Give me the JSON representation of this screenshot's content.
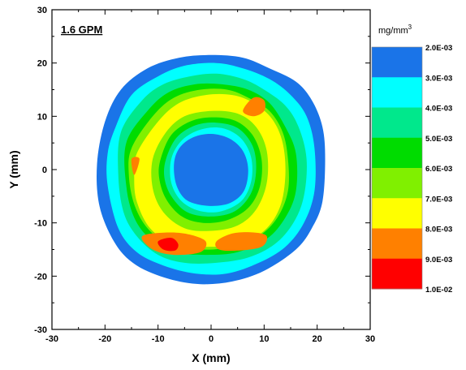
{
  "chart_data": {
    "type": "heatmap",
    "title": "",
    "annotation": "1.6 GPM",
    "xlabel": "X (mm)",
    "ylabel": "Y (mm)",
    "xlim": [
      -30,
      30
    ],
    "ylim": [
      -30,
      30
    ],
    "xticks": [
      -30,
      -20,
      -10,
      0,
      10,
      20,
      30
    ],
    "yticks": [
      -30,
      -20,
      -10,
      0,
      10,
      20,
      30
    ],
    "xtick_labels": [
      "-30",
      "-20",
      "-10",
      "0",
      "10",
      "20",
      "30"
    ],
    "ytick_labels": [
      "-30",
      "-20",
      "-10",
      "0",
      "10",
      "20",
      "30"
    ],
    "colorbar": {
      "unit": "mg/mm",
      "unit_sup": "3",
      "levels": [
        0.002,
        0.003,
        0.004,
        0.005,
        0.006,
        0.007,
        0.008,
        0.009,
        0.01
      ],
      "level_labels": [
        "2.0E-03",
        "3.0E-03",
        "4.0E-03",
        "5.0E-03",
        "6.0E-03",
        "7.0E-03",
        "8.0E-03",
        "9.0E-03",
        "1.0E-02"
      ],
      "colors": [
        "#1a74e8",
        "#00ffff",
        "#00e88c",
        "#00dc00",
        "#80f000",
        "#ffff00",
        "#ff8000",
        "#ff0000"
      ]
    },
    "contours": [
      {
        "level": 0.002,
        "color": "#1a74e8",
        "points": [
          [
            -20,
            9
          ],
          [
            -17,
            15
          ],
          [
            -12,
            19
          ],
          [
            -6,
            21
          ],
          [
            0,
            21.5
          ],
          [
            6,
            21
          ],
          [
            11,
            19
          ],
          [
            16,
            16.5
          ],
          [
            19,
            13
          ],
          [
            21,
            8
          ],
          [
            21.5,
            2
          ],
          [
            21,
            -6
          ],
          [
            19,
            -11
          ],
          [
            16,
            -15
          ],
          [
            10,
            -19
          ],
          [
            4,
            -21
          ],
          [
            -2,
            -21.5
          ],
          [
            -8,
            -20.5
          ],
          [
            -14,
            -18
          ],
          [
            -18,
            -14
          ],
          [
            -21,
            -7
          ],
          [
            -21.5,
            1
          ]
        ]
      },
      {
        "level": 0.003,
        "color": "#00ffff",
        "points": [
          [
            -18,
            8
          ],
          [
            -15,
            14
          ],
          [
            -10,
            17.5
          ],
          [
            -5,
            19.5
          ],
          [
            1,
            20
          ],
          [
            6,
            19
          ],
          [
            11,
            17
          ],
          [
            15,
            14
          ],
          [
            18,
            10
          ],
          [
            19.5,
            4
          ],
          [
            19.5,
            -4
          ],
          [
            17.5,
            -10
          ],
          [
            14,
            -14.5
          ],
          [
            9,
            -17.5
          ],
          [
            3,
            -19.5
          ],
          [
            -3,
            -19.5
          ],
          [
            -9,
            -18
          ],
          [
            -14,
            -15.5
          ],
          [
            -17.5,
            -11
          ],
          [
            -19.5,
            -3
          ],
          [
            -19.5,
            3
          ]
        ]
      },
      {
        "level": 0.004,
        "color": "#00e88c",
        "points": [
          [
            -17,
            7
          ],
          [
            -13,
            13
          ],
          [
            -9,
            16
          ],
          [
            -4,
            17.5
          ],
          [
            1,
            18
          ],
          [
            6,
            17
          ],
          [
            10,
            15
          ],
          [
            14,
            12
          ],
          [
            16.5,
            8
          ],
          [
            18,
            2
          ],
          [
            17.5,
            -5
          ],
          [
            15.5,
            -10
          ],
          [
            12,
            -14
          ],
          [
            7,
            -16.5
          ],
          [
            1,
            -17.5
          ],
          [
            -5,
            -17.5
          ],
          [
            -10,
            -16
          ],
          [
            -14,
            -12.5
          ],
          [
            -16.5,
            -8
          ],
          [
            -17.5,
            -1
          ]
        ]
      },
      {
        "level": 0.005,
        "color": "#00dc00",
        "points": [
          [
            -16,
            5
          ],
          [
            -12,
            11
          ],
          [
            -8,
            14.5
          ],
          [
            -3,
            16
          ],
          [
            2,
            16
          ],
          [
            7,
            15
          ],
          [
            11,
            12.5
          ],
          [
            14,
            8
          ],
          [
            16,
            3
          ],
          [
            16,
            -4
          ],
          [
            14,
            -9
          ],
          [
            10.5,
            -13
          ],
          [
            5,
            -15.5
          ],
          [
            -1,
            -16
          ],
          [
            -7,
            -15.5
          ],
          [
            -11.5,
            -13
          ],
          [
            -14.5,
            -9
          ],
          [
            -16,
            -3
          ]
        ]
      },
      {
        "level": 0.006,
        "color": "#80f000",
        "points": [
          [
            -15,
            4
          ],
          [
            -11,
            10
          ],
          [
            -7,
            13.5
          ],
          [
            -2,
            15
          ],
          [
            3,
            15
          ],
          [
            7,
            13.5
          ],
          [
            11,
            11
          ],
          [
            13.5,
            7
          ],
          [
            14.5,
            2
          ],
          [
            14.5,
            -4
          ],
          [
            12.5,
            -9
          ],
          [
            9,
            -12.5
          ],
          [
            4,
            -14.5
          ],
          [
            -2,
            -15
          ],
          [
            -8,
            -14
          ],
          [
            -12,
            -11
          ],
          [
            -14.5,
            -6.5
          ],
          [
            -15.5,
            -1
          ]
        ]
      },
      {
        "level": 0.007,
        "color": "#ffff00",
        "points": [
          [
            -14,
            3
          ],
          [
            -10,
            9
          ],
          [
            -6,
            12.5
          ],
          [
            -1,
            14
          ],
          [
            4,
            14
          ],
          [
            8,
            12.5
          ],
          [
            11.5,
            9.5
          ],
          [
            13.5,
            5
          ],
          [
            14,
            -1
          ],
          [
            13,
            -7
          ],
          [
            10,
            -11.5
          ],
          [
            5,
            -14
          ],
          [
            -1,
            -14.5
          ],
          [
            -7,
            -14
          ],
          [
            -11.5,
            -11
          ],
          [
            -14,
            -6
          ],
          [
            -14.5,
            -1.5
          ]
        ]
      },
      {
        "level": 0.006,
        "color": "#80f000",
        "points": [
          [
            -11,
            2
          ],
          [
            -8.5,
            7
          ],
          [
            -5,
            10
          ],
          [
            0,
            11
          ],
          [
            5,
            10.5
          ],
          [
            8.5,
            8
          ],
          [
            10.5,
            3.5
          ],
          [
            10.5,
            -2.5
          ],
          [
            8.5,
            -7.5
          ],
          [
            5,
            -10.5
          ],
          [
            0,
            -11.5
          ],
          [
            -5,
            -11
          ],
          [
            -9,
            -8
          ],
          [
            -11,
            -3.5
          ]
        ]
      },
      {
        "level": 0.005,
        "color": "#00dc00",
        "points": [
          [
            -9.5,
            2
          ],
          [
            -7.5,
            6.5
          ],
          [
            -4,
            9
          ],
          [
            0,
            9.8
          ],
          [
            4.5,
            9.2
          ],
          [
            7.8,
            6.5
          ],
          [
            9.5,
            2
          ],
          [
            9.2,
            -3.2
          ],
          [
            7,
            -7.2
          ],
          [
            3,
            -9.5
          ],
          [
            -1.5,
            -10
          ],
          [
            -5.5,
            -8.8
          ],
          [
            -8.5,
            -5.5
          ],
          [
            -9.8,
            -1.5
          ]
        ]
      },
      {
        "level": 0.004,
        "color": "#00e88c",
        "points": [
          [
            -8.5,
            2
          ],
          [
            -6.5,
            6
          ],
          [
            -3,
            8.3
          ],
          [
            1,
            8.8
          ],
          [
            5,
            7.8
          ],
          [
            7.8,
            4.5
          ],
          [
            8.5,
            0
          ],
          [
            7.5,
            -4.5
          ],
          [
            4.5,
            -7.8
          ],
          [
            0,
            -8.8
          ],
          [
            -4.5,
            -8
          ],
          [
            -7.5,
            -5
          ],
          [
            -8.8,
            -1.5
          ]
        ]
      },
      {
        "level": 0.003,
        "color": "#00ffff",
        "points": [
          [
            -7.5,
            2
          ],
          [
            -5.5,
            5.5
          ],
          [
            -2,
            7.5
          ],
          [
            2,
            7.8
          ],
          [
            5.5,
            6
          ],
          [
            7.5,
            2.5
          ],
          [
            7.6,
            -2
          ],
          [
            5.8,
            -5.8
          ],
          [
            2,
            -7.8
          ],
          [
            -2,
            -7.8
          ],
          [
            -5.5,
            -6
          ],
          [
            -7.5,
            -2.5
          ]
        ]
      },
      {
        "level": 0.002,
        "color": "#1a74e8",
        "points": [
          [
            -7,
            1
          ],
          [
            -6,
            4
          ],
          [
            -3.5,
            6
          ],
          [
            0,
            6.7
          ],
          [
            3.5,
            5.8
          ],
          [
            6,
            3.5
          ],
          [
            7,
            0
          ],
          [
            6.2,
            -4
          ],
          [
            3.5,
            -6.3
          ],
          [
            -0.5,
            -6.8
          ],
          [
            -4.5,
            -5.8
          ],
          [
            -6.5,
            -3
          ]
        ]
      },
      {
        "level": 0.008,
        "color": "#ff8000",
        "points": [
          [
            -13,
            -12.5
          ],
          [
            -11,
            -15
          ],
          [
            -7,
            -16
          ],
          [
            -2,
            -15.5
          ],
          [
            -1,
            -13.5
          ],
          [
            -4,
            -12.2
          ],
          [
            -8,
            -11.8
          ]
        ]
      },
      {
        "level": 0.008,
        "color": "#ff8000",
        "points": [
          [
            1,
            -13.5
          ],
          [
            4,
            -12
          ],
          [
            8,
            -11.8
          ],
          [
            10.5,
            -12.5
          ],
          [
            9.5,
            -14.5
          ],
          [
            5,
            -15.2
          ],
          [
            1.5,
            -15
          ]
        ]
      },
      {
        "level": 0.008,
        "color": "#ff8000",
        "points": [
          [
            6,
            11
          ],
          [
            8,
            13.5
          ],
          [
            10,
            13
          ],
          [
            10,
            11
          ],
          [
            8,
            10
          ]
        ]
      },
      {
        "level": 0.008,
        "color": "#ff8000",
        "points": [
          [
            -15,
            2
          ],
          [
            -14.5,
            -1
          ],
          [
            -13.5,
            2
          ]
        ]
      },
      {
        "level": 0.009,
        "color": "#ff0000",
        "points": [
          [
            -10,
            -13.5
          ],
          [
            -9,
            -15
          ],
          [
            -6.8,
            -15.2
          ],
          [
            -6.2,
            -14
          ],
          [
            -7.5,
            -12.8
          ]
        ]
      }
    ]
  }
}
